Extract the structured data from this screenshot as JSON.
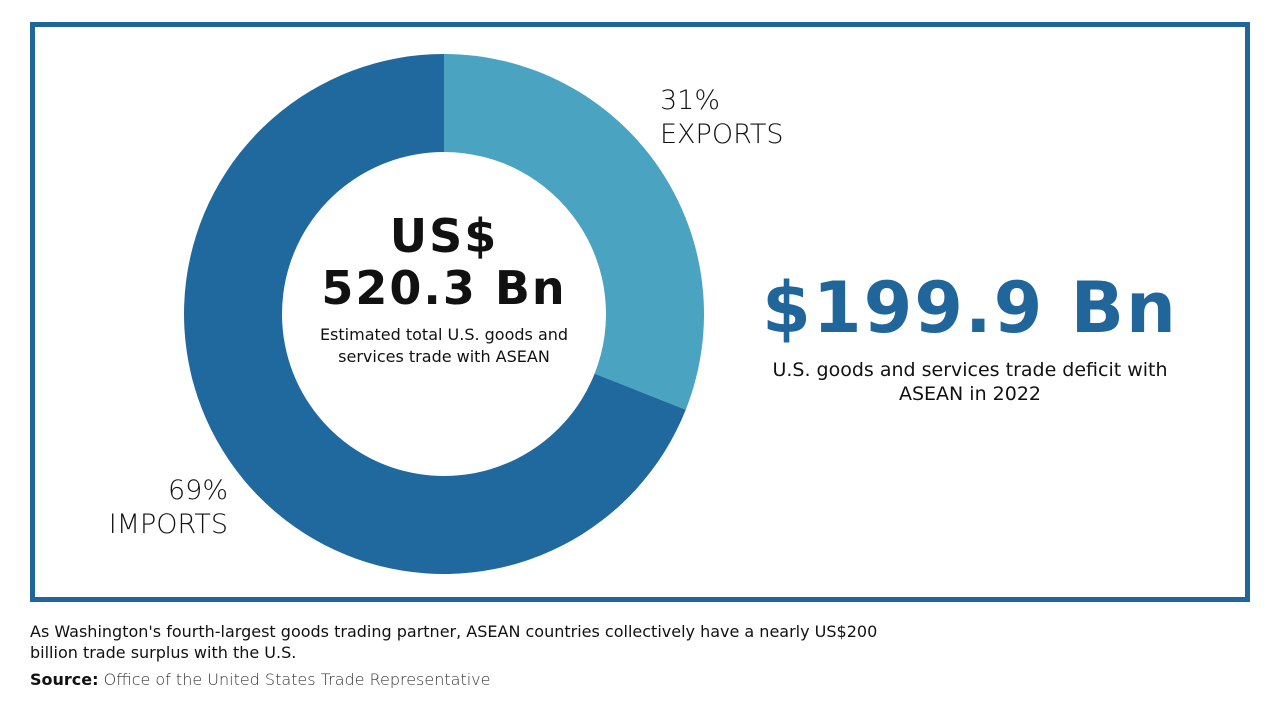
{
  "chart_data": {
    "type": "pie",
    "variant": "donut",
    "categories": [
      "Exports",
      "Imports"
    ],
    "values": [
      31,
      69
    ],
    "slice_labels": [
      {
        "percent": "31%",
        "name": "EXPORTS"
      },
      {
        "percent": "69%",
        "name": "IMPORTS"
      }
    ],
    "colors": [
      "#4aa3c0",
      "#20699f"
    ],
    "center_value": "US$ 520.3 Bn",
    "center_value_lines": [
      "US$",
      "520.3 Bn"
    ],
    "center_caption": "Estimated total U.S. goods and services trade with ASEAN"
  },
  "highlight": {
    "value": "$199.9 Bn",
    "description": "U.S. goods and services trade deficit with ASEAN in 2022",
    "color": "#21669b"
  },
  "footer": {
    "note": "As Washington's fourth-largest goods trading partner, ASEAN countries collectively have a nearly US$200 billion trade surplus with the U.S.",
    "source_label": "Source:",
    "source_text": "Office of the United States Trade Representative"
  },
  "frame_color": "#21669b"
}
